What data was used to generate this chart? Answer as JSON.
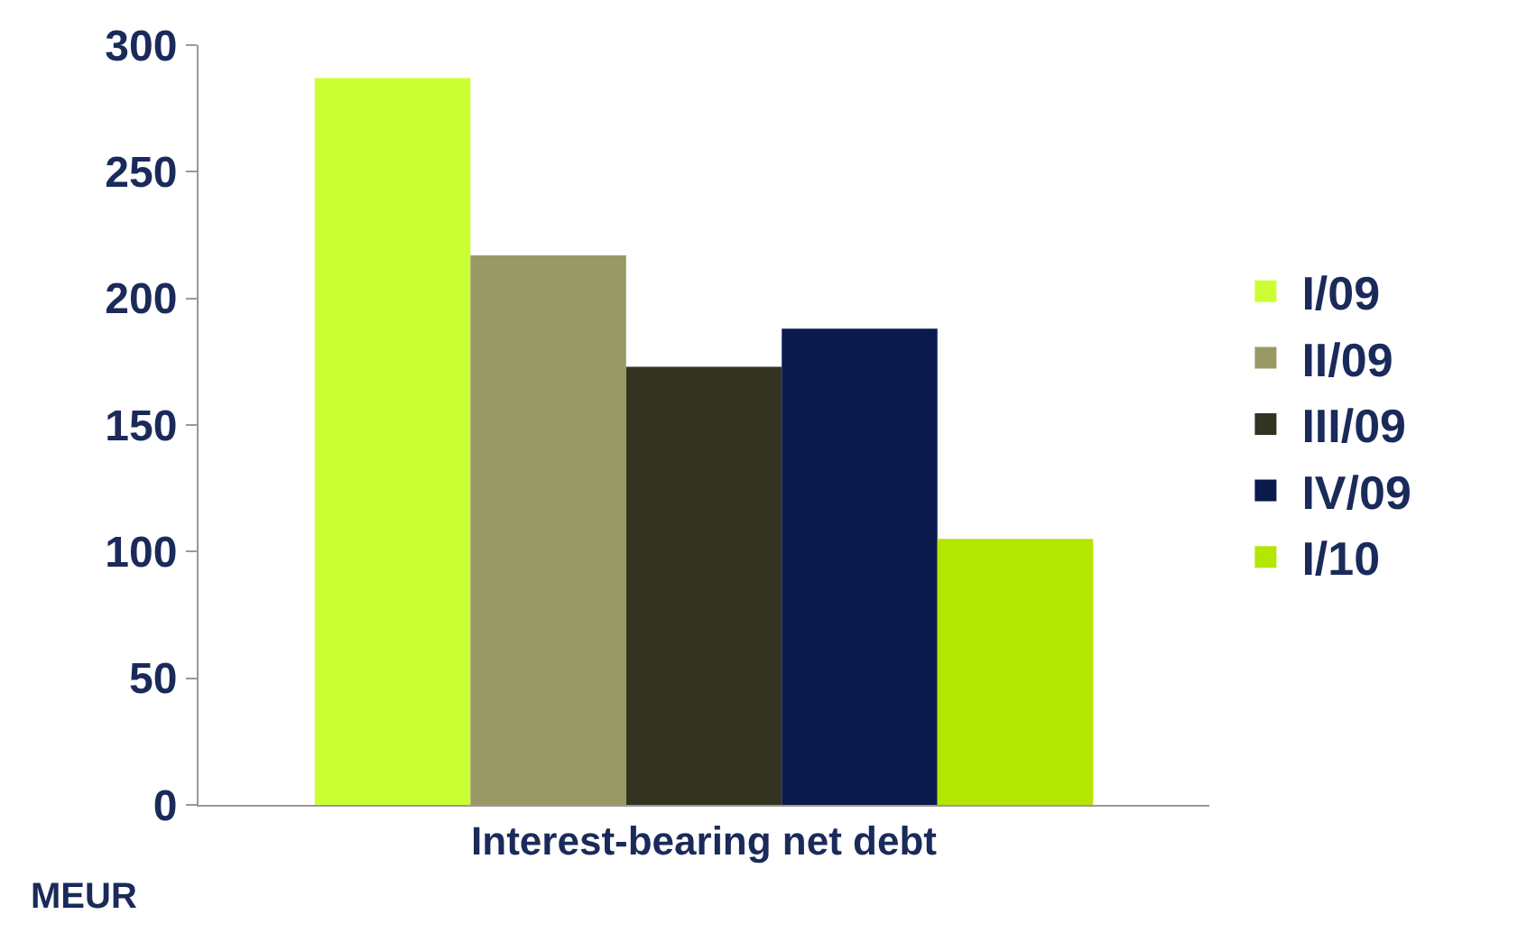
{
  "chart_data": {
    "type": "bar",
    "categories": [
      "Interest-bearing net debt"
    ],
    "series": [
      {
        "name": "I/09",
        "color": "#ccff33",
        "values": [
          287
        ]
      },
      {
        "name": "II/09",
        "color": "#999966",
        "values": [
          217
        ]
      },
      {
        "name": "III/09",
        "color": "#333322",
        "values": [
          173
        ]
      },
      {
        "name": "IV/09",
        "color": "#0a1a4d",
        "values": [
          188
        ]
      },
      {
        "name": "I/10",
        "color": "#b3e600",
        "values": [
          105
        ]
      }
    ],
    "ylim": [
      0,
      300
    ],
    "yticks": [
      0,
      50,
      100,
      150,
      200,
      250,
      300
    ],
    "legend": "right",
    "annotations": [
      "MEUR"
    ]
  }
}
